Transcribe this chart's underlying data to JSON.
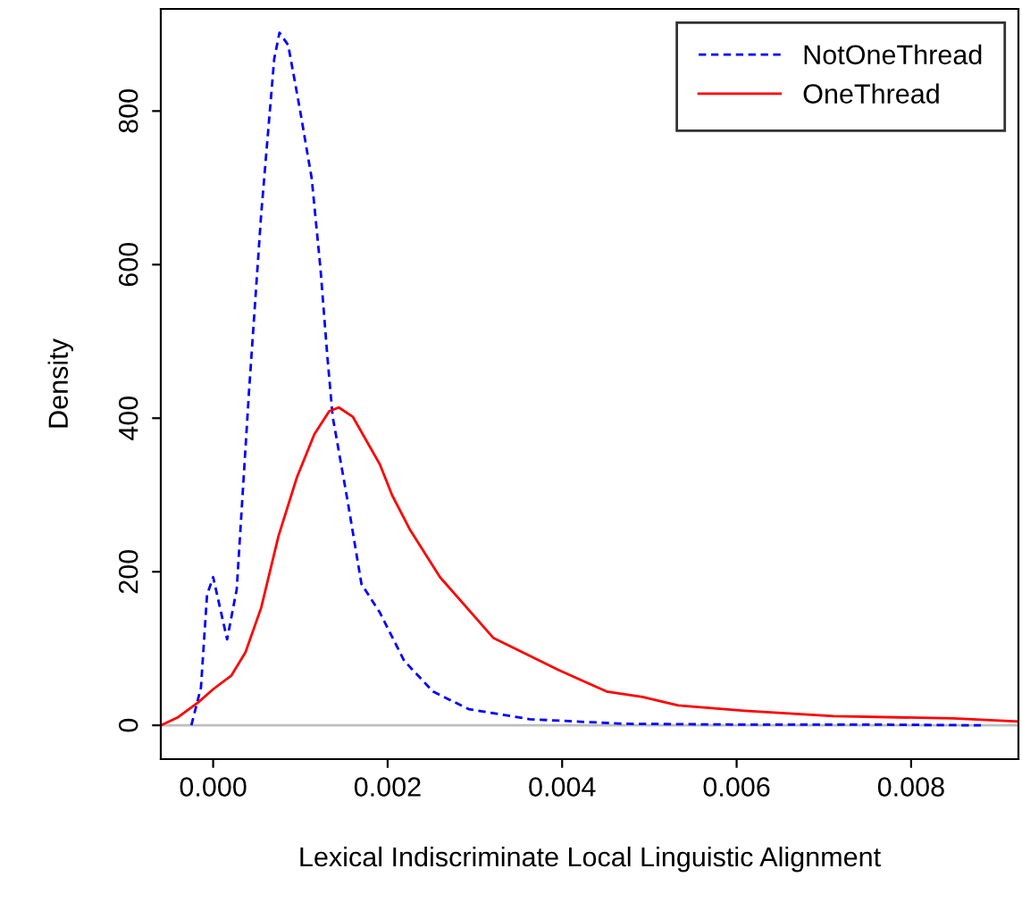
{
  "chart_data": {
    "type": "line",
    "xlabel": "Lexical Indiscriminate Local Linguistic Alignment",
    "ylabel": "Density",
    "series": [
      {
        "name": "NotOneThread",
        "color": "#0000ff",
        "line_style": "dashed",
        "x": [
          -0.00025,
          -0.00014,
          -7e-05,
          0.0,
          0.00016,
          0.00027,
          0.00041,
          0.00055,
          0.0007,
          0.00076,
          0.00086,
          0.00099,
          0.00113,
          0.00123,
          0.00131,
          0.00137,
          0.00154,
          0.0017,
          0.00191,
          0.00219,
          0.00252,
          0.00293,
          0.00363,
          0.0047,
          0.006,
          0.0075,
          0.0088
        ],
        "values": [
          0,
          49,
          170,
          193,
          112,
          177,
          433,
          665,
          868,
          902,
          886,
          805,
          712,
          595,
          479,
          402,
          293,
          184,
          147,
          84,
          44,
          21,
          8,
          2,
          1,
          1,
          0
        ]
      },
      {
        "name": "OneThread",
        "color": "#ff0000",
        "line_style": "solid",
        "x": [
          -0.0006,
          -0.00041,
          -0.00017,
          0.0,
          0.00021,
          0.00037,
          0.00055,
          0.00075,
          0.00096,
          0.00116,
          0.00133,
          0.00144,
          0.0016,
          0.00191,
          0.00205,
          0.00226,
          0.0026,
          0.00321,
          0.00396,
          0.00451,
          0.00492,
          0.00533,
          0.00609,
          0.00711,
          0.00848,
          0.00923
        ],
        "values": [
          0,
          10,
          30,
          47,
          65,
          95,
          153,
          247,
          323,
          379,
          409,
          414,
          402,
          340,
          300,
          254,
          193,
          114,
          72,
          44,
          37,
          26,
          19,
          12,
          9,
          5
        ]
      }
    ],
    "xlim": [
      -0.0006,
      0.00923
    ],
    "ylim": [
      -44,
      933
    ],
    "xticks": [
      {
        "value": 0,
        "label": "0.000"
      },
      {
        "value": 0.002,
        "label": "0.002"
      },
      {
        "value": 0.004,
        "label": "0.004"
      },
      {
        "value": 0.006,
        "label": "0.006"
      },
      {
        "value": 0.008,
        "label": "0.008"
      }
    ],
    "yticks": [
      0,
      200,
      400,
      600,
      800
    ],
    "ref_lines": [
      {
        "axis": "y",
        "value": 0,
        "color": "#bebebe",
        "line_style": "solid"
      }
    ],
    "grid": false,
    "legend": "top right"
  }
}
